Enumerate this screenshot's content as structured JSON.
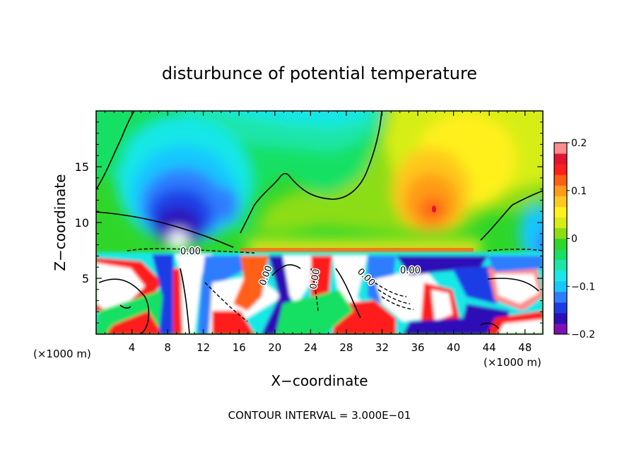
{
  "chart_data": {
    "type": "heatmap",
    "title": "disturbunce of potential temperature",
    "xlabel": "X−coordinate",
    "ylabel": "Z−coordinate",
    "x_unit_left": "(×1000 m)",
    "x_unit_right": "(×1000 m)",
    "footer": "CONTOUR INTERVAL = 3.000E−01",
    "xlim": [
      0,
      50
    ],
    "ylim": [
      0,
      20
    ],
    "x_ticks": [
      4,
      8,
      12,
      16,
      20,
      24,
      28,
      32,
      36,
      40,
      44,
      48
    ],
    "y_ticks": [
      5,
      10,
      15
    ],
    "colorbar": {
      "range": [
        -0.2,
        0.2
      ],
      "tick_values": [
        0.2,
        0.1,
        0,
        -0.1,
        -0.2
      ],
      "tick_labels": [
        "0.2",
        "0.1",
        "0",
        "−0.1",
        "−0.2"
      ],
      "colors": [
        "#7e0fb7",
        "#2d0fb7",
        "#1e3ce6",
        "#2e7dff",
        "#17c8ff",
        "#19e7e7",
        "#1ee6a8",
        "#19e064",
        "#2fd62a",
        "#8cdd14",
        "#d7ee14",
        "#fff01e",
        "#ffc81e",
        "#ff9b19",
        "#ff5f14",
        "#ff1e1e",
        "#e11432",
        "#ff8c8c"
      ]
    },
    "contour_labels": [
      "0.00",
      "0.00",
      "0.00",
      "0.00",
      "0.00",
      "0.00"
    ]
  }
}
